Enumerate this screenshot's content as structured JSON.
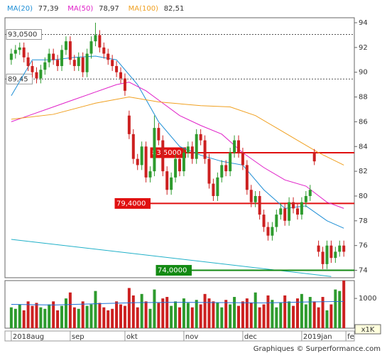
{
  "chart_data": {
    "type": "candlestick",
    "legend": [
      {
        "name": "MA(20)",
        "last": {
          "value": 77.39,
          "label": "77,39"
        },
        "color": "#1f8fd6"
      },
      {
        "name": "MA(50)",
        "last": {
          "value": 78.97,
          "label": "78,97"
        },
        "color": "#e020c8"
      },
      {
        "name": "MA(100)",
        "last": {
          "value": 82.51,
          "label": "82,51"
        },
        "color": "#f0a020"
      }
    ],
    "ylim": [
      73.4,
      94.4
    ],
    "yticks": [
      74,
      76,
      78,
      80,
      82,
      84,
      86,
      88,
      90,
      92,
      94
    ],
    "xlim": [
      -1.5,
      81.5
    ],
    "xticks": [
      {
        "value": 0,
        "label": "2018aug"
      },
      {
        "value": 14,
        "label": "sep"
      },
      {
        "value": 27,
        "label": "okt"
      },
      {
        "value": 41,
        "label": "nov"
      },
      {
        "value": 55,
        "label": "dec"
      },
      {
        "value": 69,
        "label": "2019jan"
      },
      {
        "value": 79.5,
        "label": "fe"
      }
    ],
    "up_color": "#2e9b2e",
    "down_color": "#cc2020",
    "candles": [
      [
        91.0,
        91.9,
        90.6,
        91.5
      ],
      [
        91.5,
        92.2,
        91.1,
        91.8
      ],
      [
        91.8,
        92.4,
        91.4,
        92.0
      ],
      [
        92.0,
        92.4,
        90.8,
        91.2
      ],
      [
        91.2,
        91.6,
        90.1,
        90.5
      ],
      [
        90.5,
        90.9,
        89.6,
        90.0
      ],
      [
        90.0,
        90.4,
        89.1,
        89.5
      ],
      [
        89.5,
        90.6,
        89.1,
        90.2
      ],
      [
        90.2,
        91.2,
        89.8,
        90.8
      ],
      [
        90.8,
        91.9,
        90.4,
        91.5
      ],
      [
        91.5,
        91.9,
        90.6,
        91.0
      ],
      [
        91.0,
        91.4,
        90.1,
        90.5
      ],
      [
        90.5,
        92.2,
        90.1,
        91.8
      ],
      [
        91.8,
        92.9,
        91.4,
        92.5
      ],
      [
        92.5,
        92.9,
        90.6,
        91.0
      ],
      [
        91.0,
        91.4,
        90.1,
        90.5
      ],
      [
        90.5,
        91.6,
        90.1,
        91.2
      ],
      [
        91.2,
        91.6,
        89.6,
        90.0
      ],
      [
        90.0,
        91.9,
        89.6,
        91.5
      ],
      [
        91.5,
        92.9,
        91.1,
        92.5
      ],
      [
        92.5,
        94.0,
        92.1,
        93.0
      ],
      [
        93.0,
        93.4,
        91.6,
        92.0
      ],
      [
        92.0,
        92.4,
        91.1,
        91.5
      ],
      [
        91.5,
        91.9,
        90.6,
        91.0
      ],
      [
        91.0,
        91.4,
        90.1,
        90.5
      ],
      [
        90.5,
        90.9,
        89.6,
        90.0
      ],
      [
        90.0,
        90.4,
        89.1,
        89.5
      ],
      [
        89.5,
        89.9,
        88.1,
        88.5
      ],
      [
        86.5,
        86.9,
        84.6,
        85.0
      ],
      [
        85.0,
        85.4,
        82.6,
        83.0
      ],
      [
        83.0,
        83.4,
        82.1,
        82.5
      ],
      [
        82.5,
        84.4,
        82.1,
        84.0
      ],
      [
        84.0,
        84.4,
        81.1,
        81.5
      ],
      [
        81.5,
        82.4,
        81.1,
        82.0
      ],
      [
        82.0,
        86.5,
        81.6,
        85.5
      ],
      [
        85.5,
        85.9,
        84.1,
        84.5
      ],
      [
        84.5,
        84.9,
        81.6,
        82.0
      ],
      [
        82.0,
        82.4,
        80.1,
        80.5
      ],
      [
        80.5,
        81.9,
        80.1,
        81.5
      ],
      [
        81.5,
        83.4,
        81.1,
        83.0
      ],
      [
        83.0,
        83.4,
        81.6,
        82.0
      ],
      [
        82.0,
        83.9,
        81.6,
        83.5
      ],
      [
        83.5,
        84.4,
        83.1,
        84.0
      ],
      [
        84.0,
        84.4,
        82.6,
        83.0
      ],
      [
        83.0,
        85.4,
        82.6,
        85.0
      ],
      [
        85.0,
        85.4,
        84.1,
        84.5
      ],
      [
        84.5,
        84.9,
        82.6,
        83.0
      ],
      [
        83.0,
        83.4,
        80.6,
        81.0
      ],
      [
        81.0,
        81.4,
        79.6,
        80.0
      ],
      [
        80.0,
        81.9,
        79.6,
        81.5
      ],
      [
        81.5,
        82.9,
        81.1,
        82.5
      ],
      [
        82.5,
        82.9,
        81.6,
        82.0
      ],
      [
        82.0,
        83.9,
        81.6,
        83.5
      ],
      [
        83.5,
        84.9,
        83.1,
        84.5
      ],
      [
        84.5,
        84.9,
        83.1,
        83.5
      ],
      [
        83.5,
        83.9,
        82.1,
        82.5
      ],
      [
        82.5,
        82.9,
        80.1,
        80.5
      ],
      [
        80.5,
        80.9,
        79.1,
        79.5
      ],
      [
        79.5,
        80.4,
        79.1,
        80.0
      ],
      [
        80.0,
        80.4,
        78.1,
        78.5
      ],
      [
        78.5,
        78.9,
        77.1,
        77.5
      ],
      [
        77.5,
        77.9,
        76.4,
        76.8
      ],
      [
        76.8,
        77.9,
        76.4,
        77.5
      ],
      [
        77.5,
        78.9,
        77.1,
        78.5
      ],
      [
        78.5,
        79.4,
        78.1,
        79.0
      ],
      [
        79.0,
        79.4,
        77.6,
        78.0
      ],
      [
        78.0,
        79.9,
        77.6,
        79.5
      ],
      [
        79.5,
        79.9,
        78.6,
        79.0
      ],
      [
        79.0,
        79.4,
        78.1,
        78.5
      ],
      [
        78.5,
        79.9,
        78.1,
        79.5
      ],
      [
        79.5,
        80.4,
        79.1,
        80.0
      ],
      [
        80.0,
        80.9,
        79.6,
        80.5
      ],
      [
        83.5,
        83.8,
        82.5,
        82.8
      ],
      [
        76.0,
        76.4,
        75.1,
        75.5
      ],
      [
        75.5,
        75.9,
        74.1,
        74.5
      ],
      [
        74.5,
        76.4,
        74.1,
        76.0
      ],
      [
        76.0,
        76.4,
        74.6,
        75.0
      ],
      [
        75.0,
        75.9,
        74.6,
        75.5
      ],
      [
        75.5,
        76.4,
        75.1,
        76.0
      ],
      [
        76.0,
        76.4,
        75.1,
        75.5
      ]
    ],
    "ma_lines": [
      {
        "x": [
          0,
          5,
          10,
          15,
          20,
          25,
          30,
          35,
          40,
          45,
          50,
          55,
          60,
          65,
          70,
          75,
          79
        ],
        "values": [
          88.1,
          91.0,
          91.0,
          91.2,
          91.3,
          91.0,
          89.0,
          86.0,
          84.0,
          83.3,
          82.8,
          82.5,
          80.5,
          79.0,
          79.2,
          78.0,
          77.4
        ]
      },
      {
        "x": [
          0,
          5,
          10,
          15,
          20,
          25,
          28,
          32,
          36,
          40,
          45,
          50,
          55,
          60,
          65,
          70,
          75,
          79
        ],
        "values": [
          86.0,
          86.6,
          87.2,
          87.8,
          88.4,
          89.0,
          89.2,
          88.5,
          87.5,
          86.5,
          85.7,
          85.0,
          83.5,
          82.3,
          81.3,
          80.8,
          79.5,
          79.0
        ]
      },
      {
        "x": [
          0,
          10,
          20,
          28,
          35,
          45,
          52,
          58,
          63,
          68,
          73,
          79
        ],
        "values": [
          86.2,
          86.6,
          87.5,
          88.0,
          87.6,
          87.3,
          87.2,
          86.5,
          85.5,
          84.5,
          83.5,
          82.5
        ]
      }
    ],
    "trendline": {
      "x": [
        0,
        76
      ],
      "values": [
        76.5,
        73.5
      ],
      "color": "#20b0c8"
    },
    "levels": [
      {
        "value": 93.05,
        "label": "93,0500",
        "style": "dashed",
        "color": "#555555"
      },
      {
        "value": 89.45,
        "label": "89,45",
        "style": "dashed",
        "color": "#555555"
      },
      {
        "value": 83.5,
        "label": "83,5000",
        "style": "solid",
        "color": "#e01010"
      },
      {
        "value": 79.4,
        "label": "79,4000",
        "style": "solid",
        "color": "#e01010"
      },
      {
        "value": 74.0,
        "label": "74,0000",
        "style": "solid",
        "color": "#138a13"
      }
    ],
    "volume": {
      "ylim": [
        0,
        1600
      ],
      "yticks": [
        {
          "value": 1000,
          "label": "1000"
        }
      ],
      "unit_label": "x1K",
      "values": [
        700,
        650,
        800,
        600,
        900,
        750,
        850,
        700,
        650,
        800,
        900,
        600,
        750,
        1000,
        1200,
        700,
        650,
        900,
        750,
        800,
        1250,
        850,
        700,
        600,
        650,
        900,
        800,
        750,
        1350,
        1100,
        700,
        1150,
        900,
        650,
        1300,
        850,
        1000,
        1050,
        750,
        900,
        700,
        1000,
        850,
        700,
        950,
        800,
        1150,
        1000,
        900,
        850,
        700,
        950,
        800,
        1050,
        750,
        900,
        1000,
        850,
        1200,
        700,
        800,
        1100,
        950,
        700,
        850,
        1100,
        900,
        750,
        1000,
        1150,
        800,
        1050,
        900,
        700,
        1050,
        600,
        800,
        1300,
        1250,
        1600
      ],
      "ma": {
        "x": [
          0,
          10,
          20,
          30,
          40,
          50,
          60,
          70,
          79
        ],
        "values": [
          800,
          780,
          820,
          860,
          870,
          860,
          850,
          880,
          900
        ]
      }
    },
    "footer": "Graphiques © Surperformance.com"
  }
}
